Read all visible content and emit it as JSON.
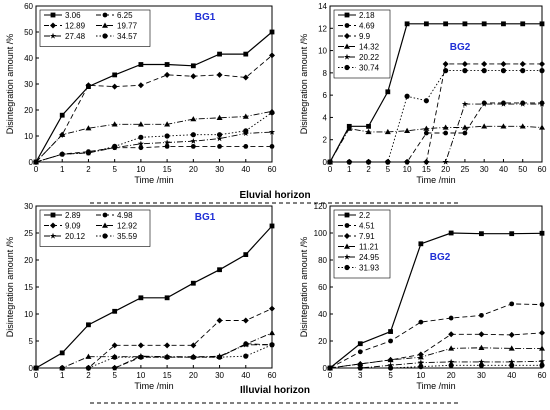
{
  "horizons": [
    "Eluvial horizon",
    "Illuvial horizon"
  ],
  "chart_data": [
    {
      "type": "line",
      "annotation": "BG1",
      "xlabel": "Time /min",
      "ylabel": "Disintegration amount /%",
      "categories": [
        "0",
        "1",
        "2",
        "5",
        "10",
        "15",
        "20",
        "30",
        "40",
        "60"
      ],
      "ylim": [
        0,
        60
      ],
      "yticks": [
        0,
        10,
        20,
        30,
        40,
        50,
        60
      ],
      "legend_position": "top-left",
      "legend_columns": 2,
      "series": [
        {
          "name": "3.06",
          "marker": "square",
          "dash": "solid",
          "values": [
            0,
            18,
            29,
            33.5,
            37.5,
            37.5,
            37,
            41.5,
            41.5,
            50
          ]
        },
        {
          "name": "6.25",
          "marker": "circle",
          "dash": "dash",
          "values": [
            0,
            3,
            4,
            5.5,
            5.5,
            6,
            6,
            6,
            6,
            6
          ]
        },
        {
          "name": "12.89",
          "marker": "diamond",
          "dash": "dash",
          "values": [
            0,
            10.5,
            29.5,
            29,
            29.5,
            33.5,
            33,
            33.5,
            32.5,
            41
          ]
        },
        {
          "name": "19.77",
          "marker": "triangle",
          "dash": "dashdot",
          "values": [
            0,
            10.5,
            13,
            14.5,
            14.5,
            14.5,
            16.5,
            17,
            17.5,
            19.5
          ]
        },
        {
          "name": "27.48",
          "marker": "star",
          "dash": "dashdot",
          "values": [
            0,
            3,
            3.5,
            5.5,
            7,
            7.5,
            8,
            9,
            11,
            11.5
          ]
        },
        {
          "name": "34.57",
          "marker": "dotcircle",
          "dash": "dot",
          "values": [
            0,
            3,
            3.5,
            6,
            9.5,
            10,
            10.5,
            10.5,
            12,
            19
          ]
        }
      ]
    },
    {
      "type": "line",
      "annotation": "BG2",
      "xlabel": "Time /min",
      "ylabel": "Disintegration amount /%",
      "categories": [
        "0",
        "1",
        "2",
        "5",
        "10",
        "15",
        "20",
        "25",
        "30",
        "40",
        "50",
        "60"
      ],
      "ylim": [
        0,
        14
      ],
      "yticks": [
        0,
        2,
        4,
        6,
        8,
        10,
        12,
        14
      ],
      "legend_position": "top-left",
      "legend_columns": 1,
      "series": [
        {
          "name": "2.18",
          "marker": "square",
          "dash": "solid",
          "values": [
            0,
            3.2,
            3.2,
            6.3,
            12.4,
            12.4,
            12.4,
            12.4,
            12.4,
            12.4,
            12.4,
            12.4
          ]
        },
        {
          "name": "4.69",
          "marker": "circle",
          "dash": "dash",
          "values": [
            0,
            0,
            0,
            0,
            0,
            2.6,
            2.6,
            2.6,
            5.3,
            5.3,
            5.3,
            5.3
          ]
        },
        {
          "name": "9.9",
          "marker": "diamond",
          "dash": "dash",
          "values": [
            0,
            0,
            0,
            0,
            0,
            0,
            8.8,
            8.8,
            8.8,
            8.8,
            8.8,
            8.8
          ]
        },
        {
          "name": "14.32",
          "marker": "triangle",
          "dash": "dashdot",
          "values": [
            0,
            3,
            2.7,
            2.7,
            2.8,
            3,
            3.1,
            3.1,
            3.2,
            3.2,
            3.2,
            3.1
          ]
        },
        {
          "name": "20.22",
          "marker": "star",
          "dash": "dashdot",
          "values": [
            0,
            0,
            0,
            0,
            0,
            0,
            0,
            5.2,
            5.2,
            5.2,
            5.2,
            5.2
          ]
        },
        {
          "name": "30.74",
          "marker": "dotcircle",
          "dash": "dot",
          "values": [
            0,
            0,
            0,
            0,
            5.9,
            5.5,
            8.2,
            8.2,
            8.2,
            8.2,
            8.2,
            8.2
          ]
        }
      ]
    },
    {
      "type": "line",
      "annotation": "BG1",
      "xlabel": "Time /min",
      "ylabel": "Disintegration amount /%",
      "categories": [
        "0",
        "1",
        "2",
        "5",
        "10",
        "15",
        "20",
        "30",
        "40",
        "60"
      ],
      "ylim": [
        0,
        30
      ],
      "yticks": [
        0,
        5,
        10,
        15,
        20,
        25,
        30
      ],
      "legend_position": "top-left",
      "legend_columns": 2,
      "series": [
        {
          "name": "2.89",
          "marker": "square",
          "dash": "solid",
          "values": [
            0,
            2.8,
            8,
            10.5,
            13,
            13,
            15.7,
            18.2,
            21,
            26.3
          ]
        },
        {
          "name": "4.98",
          "marker": "circle",
          "dash": "dash",
          "values": [
            0,
            0,
            0,
            0,
            2,
            2,
            2,
            2,
            4.5,
            4.3
          ]
        },
        {
          "name": "9.09",
          "marker": "diamond",
          "dash": "dash",
          "values": [
            0,
            0,
            0,
            4.2,
            4.2,
            4.2,
            4.2,
            8.8,
            8.8,
            11
          ]
        },
        {
          "name": "12.92",
          "marker": "triangle",
          "dash": "dashdot",
          "values": [
            0,
            0,
            2.1,
            2.1,
            2.1,
            2.1,
            2.1,
            2.1,
            4.4,
            6.5
          ]
        },
        {
          "name": "20.12",
          "marker": "star",
          "dash": "dashdot",
          "values": [
            0,
            0,
            0,
            0,
            2.2,
            2.1,
            2,
            2.2,
            4.3,
            4.3
          ]
        },
        {
          "name": "35.59",
          "marker": "dotcircle",
          "dash": "dot",
          "values": [
            0,
            0,
            0,
            2,
            2,
            2,
            2,
            2,
            2.2,
            4.3
          ]
        }
      ]
    },
    {
      "type": "line",
      "annotation": "BG2",
      "xlabel": "Time /min",
      "ylabel": "Disintegration amount /%",
      "categories": [
        "0",
        "3",
        "5",
        "10",
        "20",
        "30",
        "40",
        "60"
      ],
      "ylim": [
        0,
        120
      ],
      "yticks": [
        0,
        20,
        40,
        60,
        80,
        100,
        120
      ],
      "legend_position": "top-left",
      "legend_columns": 1,
      "series": [
        {
          "name": "2.2",
          "marker": "square",
          "dash": "solid",
          "values": [
            0,
            18,
            27,
            92,
            100,
            99.5,
            99.5,
            99.8
          ]
        },
        {
          "name": "4.51",
          "marker": "circle",
          "dash": "dash",
          "values": [
            0,
            12,
            20,
            34,
            37,
            39,
            47.5,
            47
          ]
        },
        {
          "name": "7.91",
          "marker": "diamond",
          "dash": "dash",
          "values": [
            0,
            3,
            6,
            10,
            25,
            25,
            24.5,
            26
          ]
        },
        {
          "name": "11.21",
          "marker": "triangle",
          "dash": "dashdot",
          "values": [
            0,
            3,
            6,
            8,
            14.5,
            15,
            14.5,
            14.5
          ]
        },
        {
          "name": "24.95",
          "marker": "star",
          "dash": "dashdot",
          "values": [
            0,
            0,
            2,
            4,
            4.5,
            4.5,
            4.5,
            5
          ]
        },
        {
          "name": "31.93",
          "marker": "dotcircle",
          "dash": "dot",
          "values": [
            0,
            0,
            0,
            1,
            2,
            2,
            2,
            2
          ]
        }
      ]
    }
  ]
}
